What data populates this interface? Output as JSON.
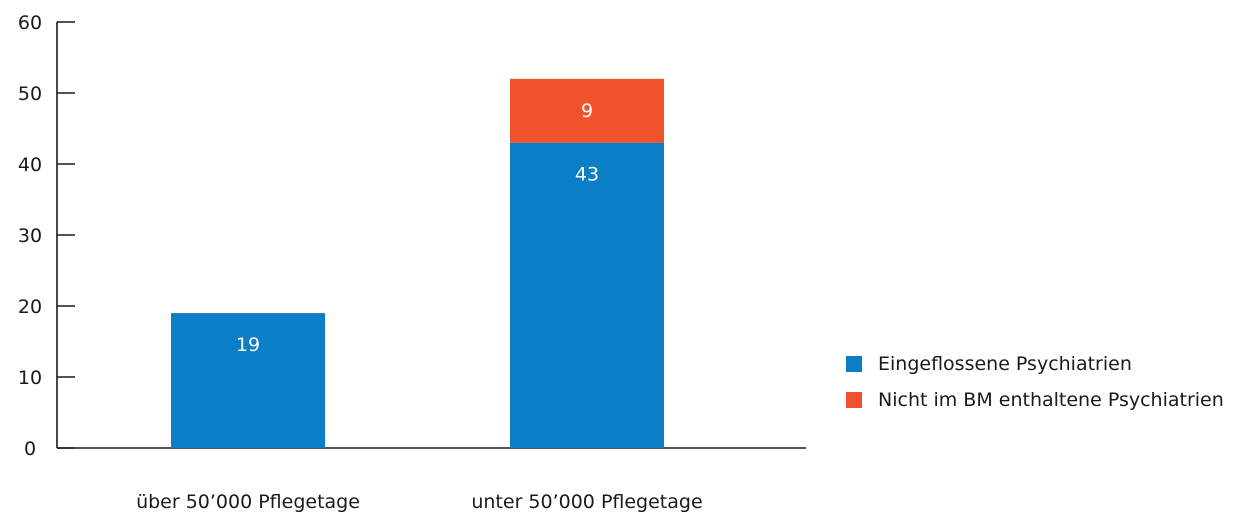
{
  "chart_data": {
    "type": "bar",
    "stacked": true,
    "categories": [
      "über 50’000 Pflegetage",
      "unter 50’000 Pflegetage"
    ],
    "series": [
      {
        "name": "Eingeflossene Psychiatrien",
        "values": [
          19,
          43
        ],
        "color": "#0b7ec5"
      },
      {
        "name": "Nicht im BM enthaltene Psychiatrien",
        "values": [
          0,
          9
        ],
        "color": "#f0522c"
      }
    ],
    "ylim": [
      0,
      60
    ],
    "yticks": [
      0,
      10,
      20,
      30,
      40,
      50,
      60
    ],
    "grid": false,
    "legend_position": "right"
  }
}
